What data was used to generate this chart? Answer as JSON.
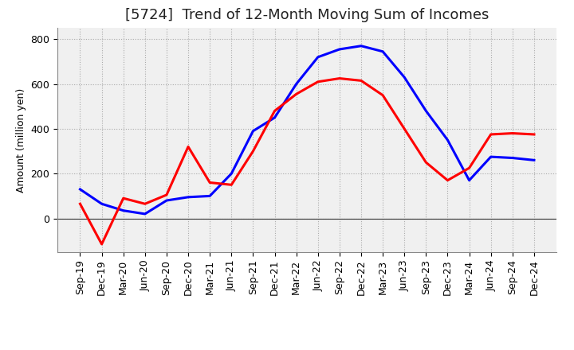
{
  "title": "[5724]  Trend of 12-Month Moving Sum of Incomes",
  "ylabel": "Amount (million yen)",
  "background_color": "#ffffff",
  "plot_bg_color": "#f0f0f0",
  "grid_color": "#aaaaaa",
  "x_labels": [
    "Sep-19",
    "Dec-19",
    "Mar-20",
    "Jun-20",
    "Sep-20",
    "Dec-20",
    "Mar-21",
    "Jun-21",
    "Sep-21",
    "Dec-21",
    "Mar-22",
    "Jun-22",
    "Sep-22",
    "Dec-22",
    "Mar-23",
    "Jun-23",
    "Sep-23",
    "Dec-23",
    "Mar-24",
    "Jun-24",
    "Sep-24",
    "Dec-24"
  ],
  "ordinary_income": [
    130,
    65,
    35,
    20,
    80,
    95,
    100,
    200,
    390,
    450,
    600,
    720,
    755,
    770,
    745,
    630,
    480,
    350,
    170,
    275,
    270,
    260
  ],
  "net_income": [
    65,
    -115,
    90,
    65,
    105,
    320,
    160,
    150,
    300,
    480,
    555,
    610,
    625,
    615,
    550,
    400,
    250,
    170,
    225,
    375,
    380,
    375
  ],
  "ordinary_income_color": "#0000ff",
  "net_income_color": "#ff0000",
  "ylim_min": -150,
  "ylim_max": 850,
  "yticks": [
    0,
    200,
    400,
    600,
    800
  ],
  "line_width": 2.2,
  "title_fontsize": 13,
  "axis_fontsize": 9,
  "tick_fontsize": 9
}
